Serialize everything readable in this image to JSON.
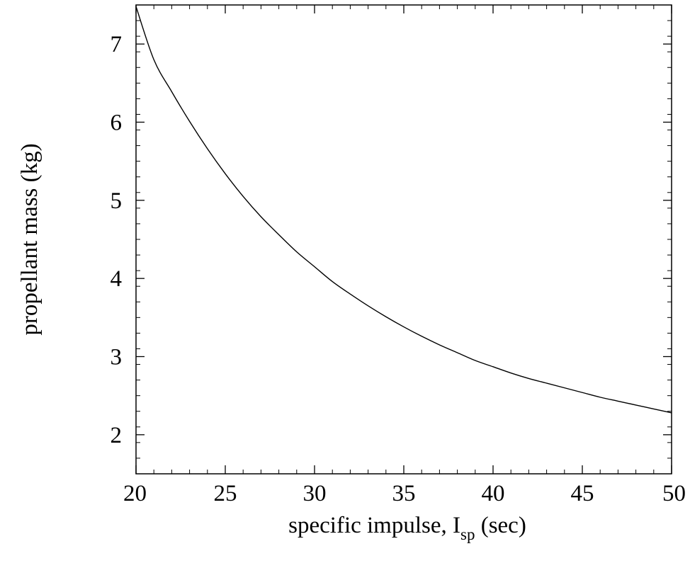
{
  "chart_data": {
    "type": "line",
    "title": "",
    "xlabel": {
      "main": "specific impulse, I",
      "subscript": "sp",
      "suffix": " (sec)"
    },
    "ylabel": "propellant mass (kg)",
    "xlim": [
      20,
      50
    ],
    "ylim": [
      1.5,
      7.5
    ],
    "x_ticks": [
      20,
      25,
      30,
      35,
      40,
      45,
      50
    ],
    "x_tick_labels": [
      "20",
      "25",
      "30",
      "35",
      "40",
      "45",
      "50"
    ],
    "y_ticks": [
      2,
      3,
      4,
      5,
      6,
      7
    ],
    "y_tick_labels": [
      "2",
      "3",
      "4",
      "5",
      "6",
      "7"
    ],
    "x_minor_step": 1,
    "y_minor_step": 0.2,
    "grid": false,
    "legend": "none",
    "series": [
      {
        "color": "#000000",
        "x": [
          20,
          21,
          22,
          23,
          24,
          25,
          26,
          27,
          28,
          29,
          30,
          31,
          32,
          33,
          34,
          35,
          36,
          37,
          38,
          39,
          40,
          41,
          42,
          43,
          44,
          45,
          46,
          47,
          48,
          49,
          50
        ],
        "y": [
          7.48,
          6.8,
          6.39,
          6.01,
          5.66,
          5.34,
          5.05,
          4.79,
          4.56,
          4.34,
          4.15,
          3.96,
          3.8,
          3.65,
          3.51,
          3.38,
          3.26,
          3.15,
          3.05,
          2.95,
          2.87,
          2.79,
          2.72,
          2.66,
          2.6,
          2.54,
          2.48,
          2.43,
          2.38,
          2.33,
          2.28
        ]
      }
    ]
  }
}
